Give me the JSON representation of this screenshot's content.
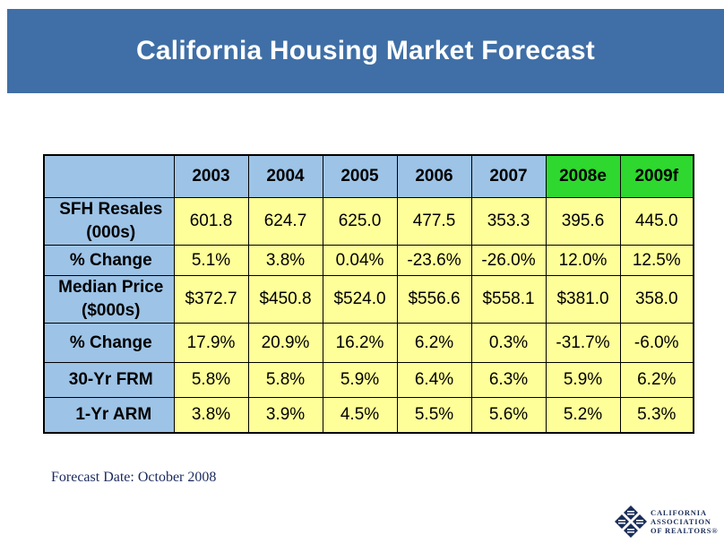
{
  "title": "California Housing Market Forecast",
  "table": {
    "headers": [
      "2003",
      "2004",
      "2005",
      "2006",
      "2007",
      "2008e",
      "2009f"
    ],
    "rows": [
      {
        "label": [
          "SFH Resales",
          "(000s)"
        ],
        "values": [
          "601.8",
          "624.7",
          "625.0",
          "477.5",
          "353.3",
          "395.6",
          "445.0"
        ]
      },
      {
        "label": [
          "% Change"
        ],
        "values": [
          "5.1%",
          "3.8%",
          "0.04%",
          "-23.6%",
          "-26.0%",
          "12.0%",
          "12.5%"
        ]
      },
      {
        "label": [
          "Median Price",
          "($000s)"
        ],
        "values": [
          "$372.7",
          "$450.8",
          "$524.0",
          "$556.6",
          "$558.1",
          "$381.0",
          "358.0"
        ]
      },
      {
        "label": [
          "% Change"
        ],
        "values": [
          "17.9%",
          "20.9%",
          "16.2%",
          "6.2%",
          "0.3%",
          "-31.7%",
          "-6.0%"
        ]
      },
      {
        "label": [
          "30-Yr FRM"
        ],
        "values": [
          "5.8%",
          "5.8%",
          "5.9%",
          "6.4%",
          "6.3%",
          "5.9%",
          "6.2%"
        ]
      },
      {
        "label": [
          "1-Yr ARM"
        ],
        "values": [
          "3.8%",
          "3.9%",
          "4.5%",
          "5.5%",
          "5.6%",
          "5.2%",
          "5.3%"
        ]
      }
    ]
  },
  "footnote": "Forecast Date: October 2008",
  "logo": {
    "line1": "CALIFORNIA",
    "line2": "ASSOCIATION",
    "line3": "OF REALTORS®"
  },
  "colors": {
    "banner": "#3f6fa6",
    "header_cells": "#9dc3e6",
    "forecast_header": "#2ed82e",
    "value_cells": "#ffff99"
  }
}
